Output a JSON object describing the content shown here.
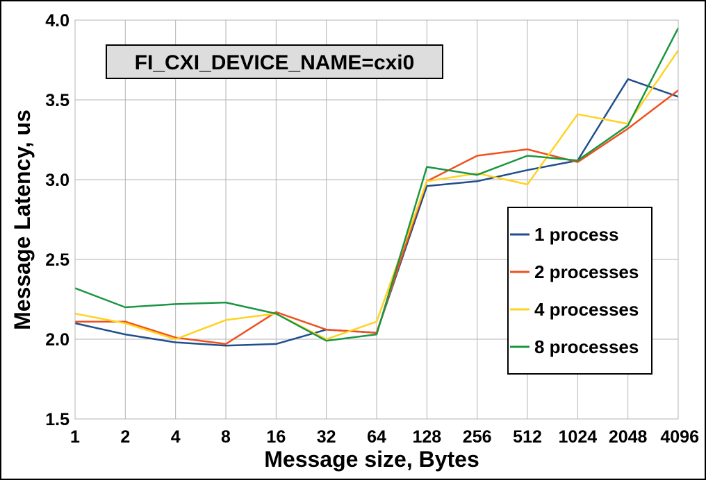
{
  "chart_data": {
    "type": "line",
    "title": "FI_CXI_DEVICE_NAME=cxi0",
    "xlabel": "Message size, Bytes",
    "ylabel": "Message Latency, us",
    "categories": [
      "1",
      "2",
      "4",
      "8",
      "16",
      "32",
      "64",
      "128",
      "256",
      "512",
      "1024",
      "2048",
      "4096"
    ],
    "ylim": [
      1.5,
      4.0
    ],
    "yticks": [
      "1.5",
      "2.0",
      "2.5",
      "3.0",
      "3.5",
      "4.0"
    ],
    "grid": true,
    "legend_position": "right",
    "series": [
      {
        "name": "1 process",
        "color": "#1f4e8c",
        "values": [
          2.1,
          2.03,
          1.98,
          1.96,
          1.97,
          2.06,
          2.04,
          2.96,
          2.99,
          3.06,
          3.12,
          3.63,
          3.52
        ]
      },
      {
        "name": "2 processes",
        "color": "#f0501e",
        "values": [
          2.11,
          2.11,
          2.01,
          1.97,
          2.17,
          2.06,
          2.04,
          2.99,
          3.15,
          3.19,
          3.11,
          3.32,
          3.56
        ]
      },
      {
        "name": "4 processes",
        "color": "#ffd320",
        "values": [
          2.16,
          2.1,
          2.0,
          2.12,
          2.16,
          2.0,
          2.11,
          2.99,
          3.04,
          2.97,
          3.41,
          3.35,
          3.81
        ]
      },
      {
        "name": "8 processes",
        "color": "#1a9641",
        "values": [
          2.32,
          2.2,
          2.22,
          2.23,
          2.16,
          1.99,
          2.03,
          3.08,
          3.03,
          3.15,
          3.12,
          3.34,
          3.95
        ]
      }
    ]
  }
}
